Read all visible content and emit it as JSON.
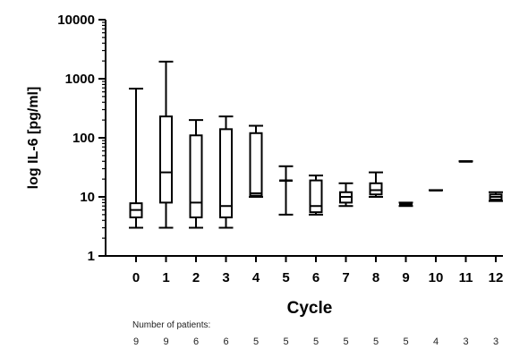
{
  "chart_data": {
    "type": "boxplot",
    "title": "",
    "xlabel": "Cycle",
    "ylabel": "log IL-6 [pg/ml]",
    "y_scale": "log",
    "ylim": [
      1,
      10000
    ],
    "y_ticks": [
      1,
      10,
      100,
      1000,
      10000
    ],
    "y_tick_labels": [
      "1",
      "10",
      "100",
      "1000",
      "10000"
    ],
    "categories": [
      "0",
      "1",
      "2",
      "3",
      "4",
      "5",
      "6",
      "7",
      "8",
      "9",
      "10",
      "11",
      "12"
    ],
    "boxes": [
      {
        "min": 3.0,
        "q1": 4.5,
        "median": 6.0,
        "q3": 7.8,
        "max": 680
      },
      {
        "min": 3.0,
        "q1": 8.0,
        "median": 26,
        "q3": 230,
        "max": 1950
      },
      {
        "min": 3.0,
        "q1": 4.5,
        "median": 8.0,
        "q3": 110,
        "max": 200
      },
      {
        "min": 3.0,
        "q1": 4.5,
        "median": 7.0,
        "q3": 140,
        "max": 230
      },
      {
        "min": 10,
        "q1": 10.5,
        "median": 11.5,
        "q3": 120,
        "max": 160
      },
      {
        "min": 5.0,
        "q1": 19,
        "median": 19,
        "q3": 19,
        "max": 33
      },
      {
        "min": 5.0,
        "q1": 5.5,
        "median": 7.0,
        "q3": 19,
        "max": 23
      },
      {
        "min": 7.0,
        "q1": 8.0,
        "median": 10,
        "q3": 12,
        "max": 17
      },
      {
        "min": 10,
        "q1": 11,
        "median": 13,
        "q3": 17,
        "max": 26
      },
      {
        "min": 7.0,
        "q1": 7.2,
        "median": 7.5,
        "q3": 7.8,
        "max": 8.0
      },
      {
        "min": 13,
        "q1": 13,
        "median": 13,
        "q3": 13,
        "max": 13
      },
      {
        "min": 40,
        "q1": 40,
        "median": 40,
        "q3": 40,
        "max": 40
      },
      {
        "min": 8.5,
        "q1": 9.0,
        "median": 10,
        "q3": 11,
        "max": 12
      }
    ],
    "number_of_patients_label": "Number of patients:",
    "number_of_patients": [
      "9",
      "9",
      "6",
      "6",
      "5",
      "5",
      "5",
      "5",
      "5",
      "5",
      "4",
      "3",
      "3"
    ],
    "grid": false,
    "legend": "none"
  }
}
